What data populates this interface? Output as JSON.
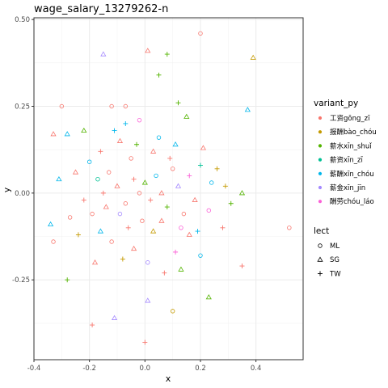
{
  "chart_data": {
    "type": "scatter",
    "title": "wage_salary_13279262-n",
    "xlabel": "x",
    "ylabel": "y",
    "xlim": [
      -0.4,
      0.57
    ],
    "ylim": [
      -0.48,
      0.505
    ],
    "xticks": [
      -0.4,
      -0.2,
      0.0,
      0.2,
      0.4
    ],
    "xtick_labels": [
      "-0.4",
      "-0.2",
      "0.0",
      "0.2",
      "0.4"
    ],
    "yticks": [
      -0.25,
      0.0,
      0.25,
      0.5
    ],
    "ytick_labels": [
      "-0.25",
      "0.00",
      "0.25",
      "0.50"
    ],
    "grid": true,
    "legend_placement": "right",
    "color_legend": {
      "title": "variant_py",
      "entries": [
        {
          "label": "工资gōng_zī",
          "color": "#F8766D"
        },
        {
          "label": "报酬bào_chóu",
          "color": "#C49A00"
        },
        {
          "label": "薪水xīn_shuǐ",
          "color": "#53B400"
        },
        {
          "label": "薪资xīn_zī",
          "color": "#00C094"
        },
        {
          "label": "薪酬xīn_chóu",
          "color": "#00B6EB"
        },
        {
          "label": "薪金xīn_jīn",
          "color": "#A58AFF"
        },
        {
          "label": "酬劳chóu_láo",
          "color": "#FB61D7"
        }
      ]
    },
    "shape_legend": {
      "title": "lect",
      "entries": [
        {
          "label": "ML",
          "shape": "circle"
        },
        {
          "label": "SG",
          "shape": "triangle"
        },
        {
          "label": "TW",
          "shape": "plus"
        }
      ]
    },
    "points": [
      {
        "x": 0.2,
        "y": 0.46,
        "v": 0,
        "l": "ML"
      },
      {
        "x": 0.52,
        "y": -0.1,
        "v": 0,
        "l": "ML"
      },
      {
        "x": -0.3,
        "y": 0.25,
        "v": 0,
        "l": "ML"
      },
      {
        "x": -0.33,
        "y": -0.14,
        "v": 0,
        "l": "ML"
      },
      {
        "x": 0.1,
        "y": -0.34,
        "v": 1,
        "l": "ML"
      },
      {
        "x": 0.01,
        "y": 0.41,
        "v": 0,
        "l": "SG"
      },
      {
        "x": 0.39,
        "y": 0.39,
        "v": 1,
        "l": "SG"
      },
      {
        "x": -0.15,
        "y": 0.4,
        "v": 5,
        "l": "SG"
      },
      {
        "x": 0.08,
        "y": 0.4,
        "v": 2,
        "l": "TW"
      },
      {
        "x": 0.05,
        "y": 0.34,
        "v": 2,
        "l": "TW"
      },
      {
        "x": 0.37,
        "y": 0.24,
        "v": 4,
        "l": "SG"
      },
      {
        "x": -0.28,
        "y": 0.17,
        "v": 4,
        "l": "SG"
      },
      {
        "x": -0.22,
        "y": 0.18,
        "v": 2,
        "l": "SG"
      },
      {
        "x": -0.33,
        "y": 0.17,
        "v": 0,
        "l": "SG"
      },
      {
        "x": 0.35,
        "y": -0.21,
        "v": 0,
        "l": "TW"
      },
      {
        "x": -0.19,
        "y": -0.38,
        "v": 0,
        "l": "TW"
      },
      {
        "x": 0.0,
        "y": -0.43,
        "v": 0,
        "l": "TW"
      },
      {
        "x": 0.23,
        "y": -0.3,
        "v": 2,
        "l": "SG"
      },
      {
        "x": -0.11,
        "y": -0.36,
        "v": 5,
        "l": "SG"
      },
      {
        "x": 0.01,
        "y": -0.31,
        "v": 5,
        "l": "SG"
      },
      {
        "x": -0.28,
        "y": -0.25,
        "v": 2,
        "l": "TW"
      },
      {
        "x": 0.28,
        "y": -0.1,
        "v": 0,
        "l": "TW"
      },
      {
        "x": 0.31,
        "y": -0.03,
        "v": 2,
        "l": "TW"
      },
      {
        "x": 0.35,
        "y": 0.0,
        "v": 2,
        "l": "SG"
      },
      {
        "x": 0.26,
        "y": 0.07,
        "v": 1,
        "l": "TW"
      },
      {
        "x": -0.34,
        "y": -0.09,
        "v": 4,
        "l": "SG"
      },
      {
        "x": -0.31,
        "y": 0.04,
        "v": 4,
        "l": "SG"
      },
      {
        "x": 0.12,
        "y": 0.26,
        "v": 2,
        "l": "TW"
      },
      {
        "x": 0.15,
        "y": 0.22,
        "v": 2,
        "l": "SG"
      },
      {
        "x": -0.07,
        "y": 0.2,
        "v": 4,
        "l": "TW"
      },
      {
        "x": -0.07,
        "y": 0.25,
        "v": 0,
        "l": "ML"
      },
      {
        "x": -0.12,
        "y": 0.25,
        "v": 0,
        "l": "ML"
      },
      {
        "x": -0.09,
        "y": 0.15,
        "v": 0,
        "l": "SG"
      },
      {
        "x": -0.11,
        "y": 0.18,
        "v": 4,
        "l": "TW"
      },
      {
        "x": -0.02,
        "y": 0.21,
        "v": 6,
        "l": "ML"
      },
      {
        "x": 0.11,
        "y": 0.14,
        "v": 4,
        "l": "SG"
      },
      {
        "x": 0.2,
        "y": 0.08,
        "v": 3,
        "l": "TW"
      },
      {
        "x": 0.24,
        "y": 0.03,
        "v": 4,
        "l": "ML"
      },
      {
        "x": 0.29,
        "y": 0.02,
        "v": 1,
        "l": "TW"
      },
      {
        "x": 0.23,
        "y": -0.05,
        "v": 6,
        "l": "ML"
      },
      {
        "x": 0.19,
        "y": -0.11,
        "v": 4,
        "l": "TW"
      },
      {
        "x": 0.16,
        "y": -0.12,
        "v": 0,
        "l": "SG"
      },
      {
        "x": 0.11,
        "y": -0.17,
        "v": 6,
        "l": "TW"
      },
      {
        "x": 0.13,
        "y": -0.22,
        "v": 2,
        "l": "SG"
      },
      {
        "x": 0.07,
        "y": -0.23,
        "v": 0,
        "l": "TW"
      },
      {
        "x": 0.01,
        "y": -0.2,
        "v": 5,
        "l": "ML"
      },
      {
        "x": -0.04,
        "y": -0.16,
        "v": 0,
        "l": "SG"
      },
      {
        "x": -0.08,
        "y": -0.19,
        "v": 1,
        "l": "TW"
      },
      {
        "x": -0.12,
        "y": -0.14,
        "v": 0,
        "l": "ML"
      },
      {
        "x": -0.16,
        "y": -0.11,
        "v": 4,
        "l": "SG"
      },
      {
        "x": -0.19,
        "y": -0.06,
        "v": 0,
        "l": "ML"
      },
      {
        "x": -0.22,
        "y": -0.02,
        "v": 0,
        "l": "TW"
      },
      {
        "x": -0.25,
        "y": 0.06,
        "v": 0,
        "l": "SG"
      },
      {
        "x": -0.2,
        "y": 0.09,
        "v": 4,
        "l": "ML"
      },
      {
        "x": -0.16,
        "y": 0.12,
        "v": 0,
        "l": "TW"
      },
      {
        "x": -0.13,
        "y": 0.06,
        "v": 0,
        "l": "ML"
      },
      {
        "x": -0.1,
        "y": 0.02,
        "v": 0,
        "l": "SG"
      },
      {
        "x": -0.07,
        "y": -0.03,
        "v": 0,
        "l": "ML"
      },
      {
        "x": -0.04,
        "y": 0.04,
        "v": 0,
        "l": "TW"
      },
      {
        "x": -0.02,
        "y": 0.0,
        "v": 0,
        "l": "ML"
      },
      {
        "x": 0.0,
        "y": 0.03,
        "v": 2,
        "l": "SG"
      },
      {
        "x": 0.02,
        "y": -0.02,
        "v": 0,
        "l": "TW"
      },
      {
        "x": 0.04,
        "y": 0.05,
        "v": 4,
        "l": "ML"
      },
      {
        "x": 0.06,
        "y": 0.0,
        "v": 0,
        "l": "SG"
      },
      {
        "x": 0.08,
        "y": -0.04,
        "v": 2,
        "l": "TW"
      },
      {
        "x": 0.1,
        "y": 0.07,
        "v": 0,
        "l": "ML"
      },
      {
        "x": 0.12,
        "y": 0.02,
        "v": 5,
        "l": "SG"
      },
      {
        "x": 0.14,
        "y": -0.06,
        "v": 0,
        "l": "ML"
      },
      {
        "x": 0.16,
        "y": 0.05,
        "v": 6,
        "l": "TW"
      },
      {
        "x": 0.18,
        "y": -0.02,
        "v": 0,
        "l": "SG"
      },
      {
        "x": -0.05,
        "y": 0.1,
        "v": 0,
        "l": "ML"
      },
      {
        "x": -0.03,
        "y": 0.14,
        "v": 2,
        "l": "TW"
      },
      {
        "x": 0.03,
        "y": 0.12,
        "v": 0,
        "l": "SG"
      },
      {
        "x": 0.05,
        "y": 0.16,
        "v": 4,
        "l": "ML"
      },
      {
        "x": -0.01,
        "y": -0.08,
        "v": 0,
        "l": "ML"
      },
      {
        "x": 0.03,
        "y": -0.11,
        "v": 1,
        "l": "SG"
      },
      {
        "x": -0.06,
        "y": -0.1,
        "v": 0,
        "l": "TW"
      },
      {
        "x": -0.09,
        "y": -0.06,
        "v": 5,
        "l": "ML"
      },
      {
        "x": 0.06,
        "y": -0.08,
        "v": 0,
        "l": "SG"
      },
      {
        "x": -0.15,
        "y": 0.0,
        "v": 0,
        "l": "TW"
      },
      {
        "x": -0.17,
        "y": 0.04,
        "v": 3,
        "l": "ML"
      },
      {
        "x": -0.14,
        "y": -0.04,
        "v": 0,
        "l": "SG"
      },
      {
        "x": 0.09,
        "y": 0.1,
        "v": 0,
        "l": "TW"
      },
      {
        "x": 0.13,
        "y": -0.1,
        "v": 6,
        "l": "ML"
      },
      {
        "x": -0.27,
        "y": -0.07,
        "v": 0,
        "l": "ML"
      },
      {
        "x": -0.24,
        "y": -0.12,
        "v": 1,
        "l": "TW"
      },
      {
        "x": 0.21,
        "y": 0.13,
        "v": 0,
        "l": "SG"
      },
      {
        "x": -0.18,
        "y": -0.2,
        "v": 0,
        "l": "SG"
      },
      {
        "x": 0.2,
        "y": -0.18,
        "v": 4,
        "l": "ML"
      }
    ]
  }
}
